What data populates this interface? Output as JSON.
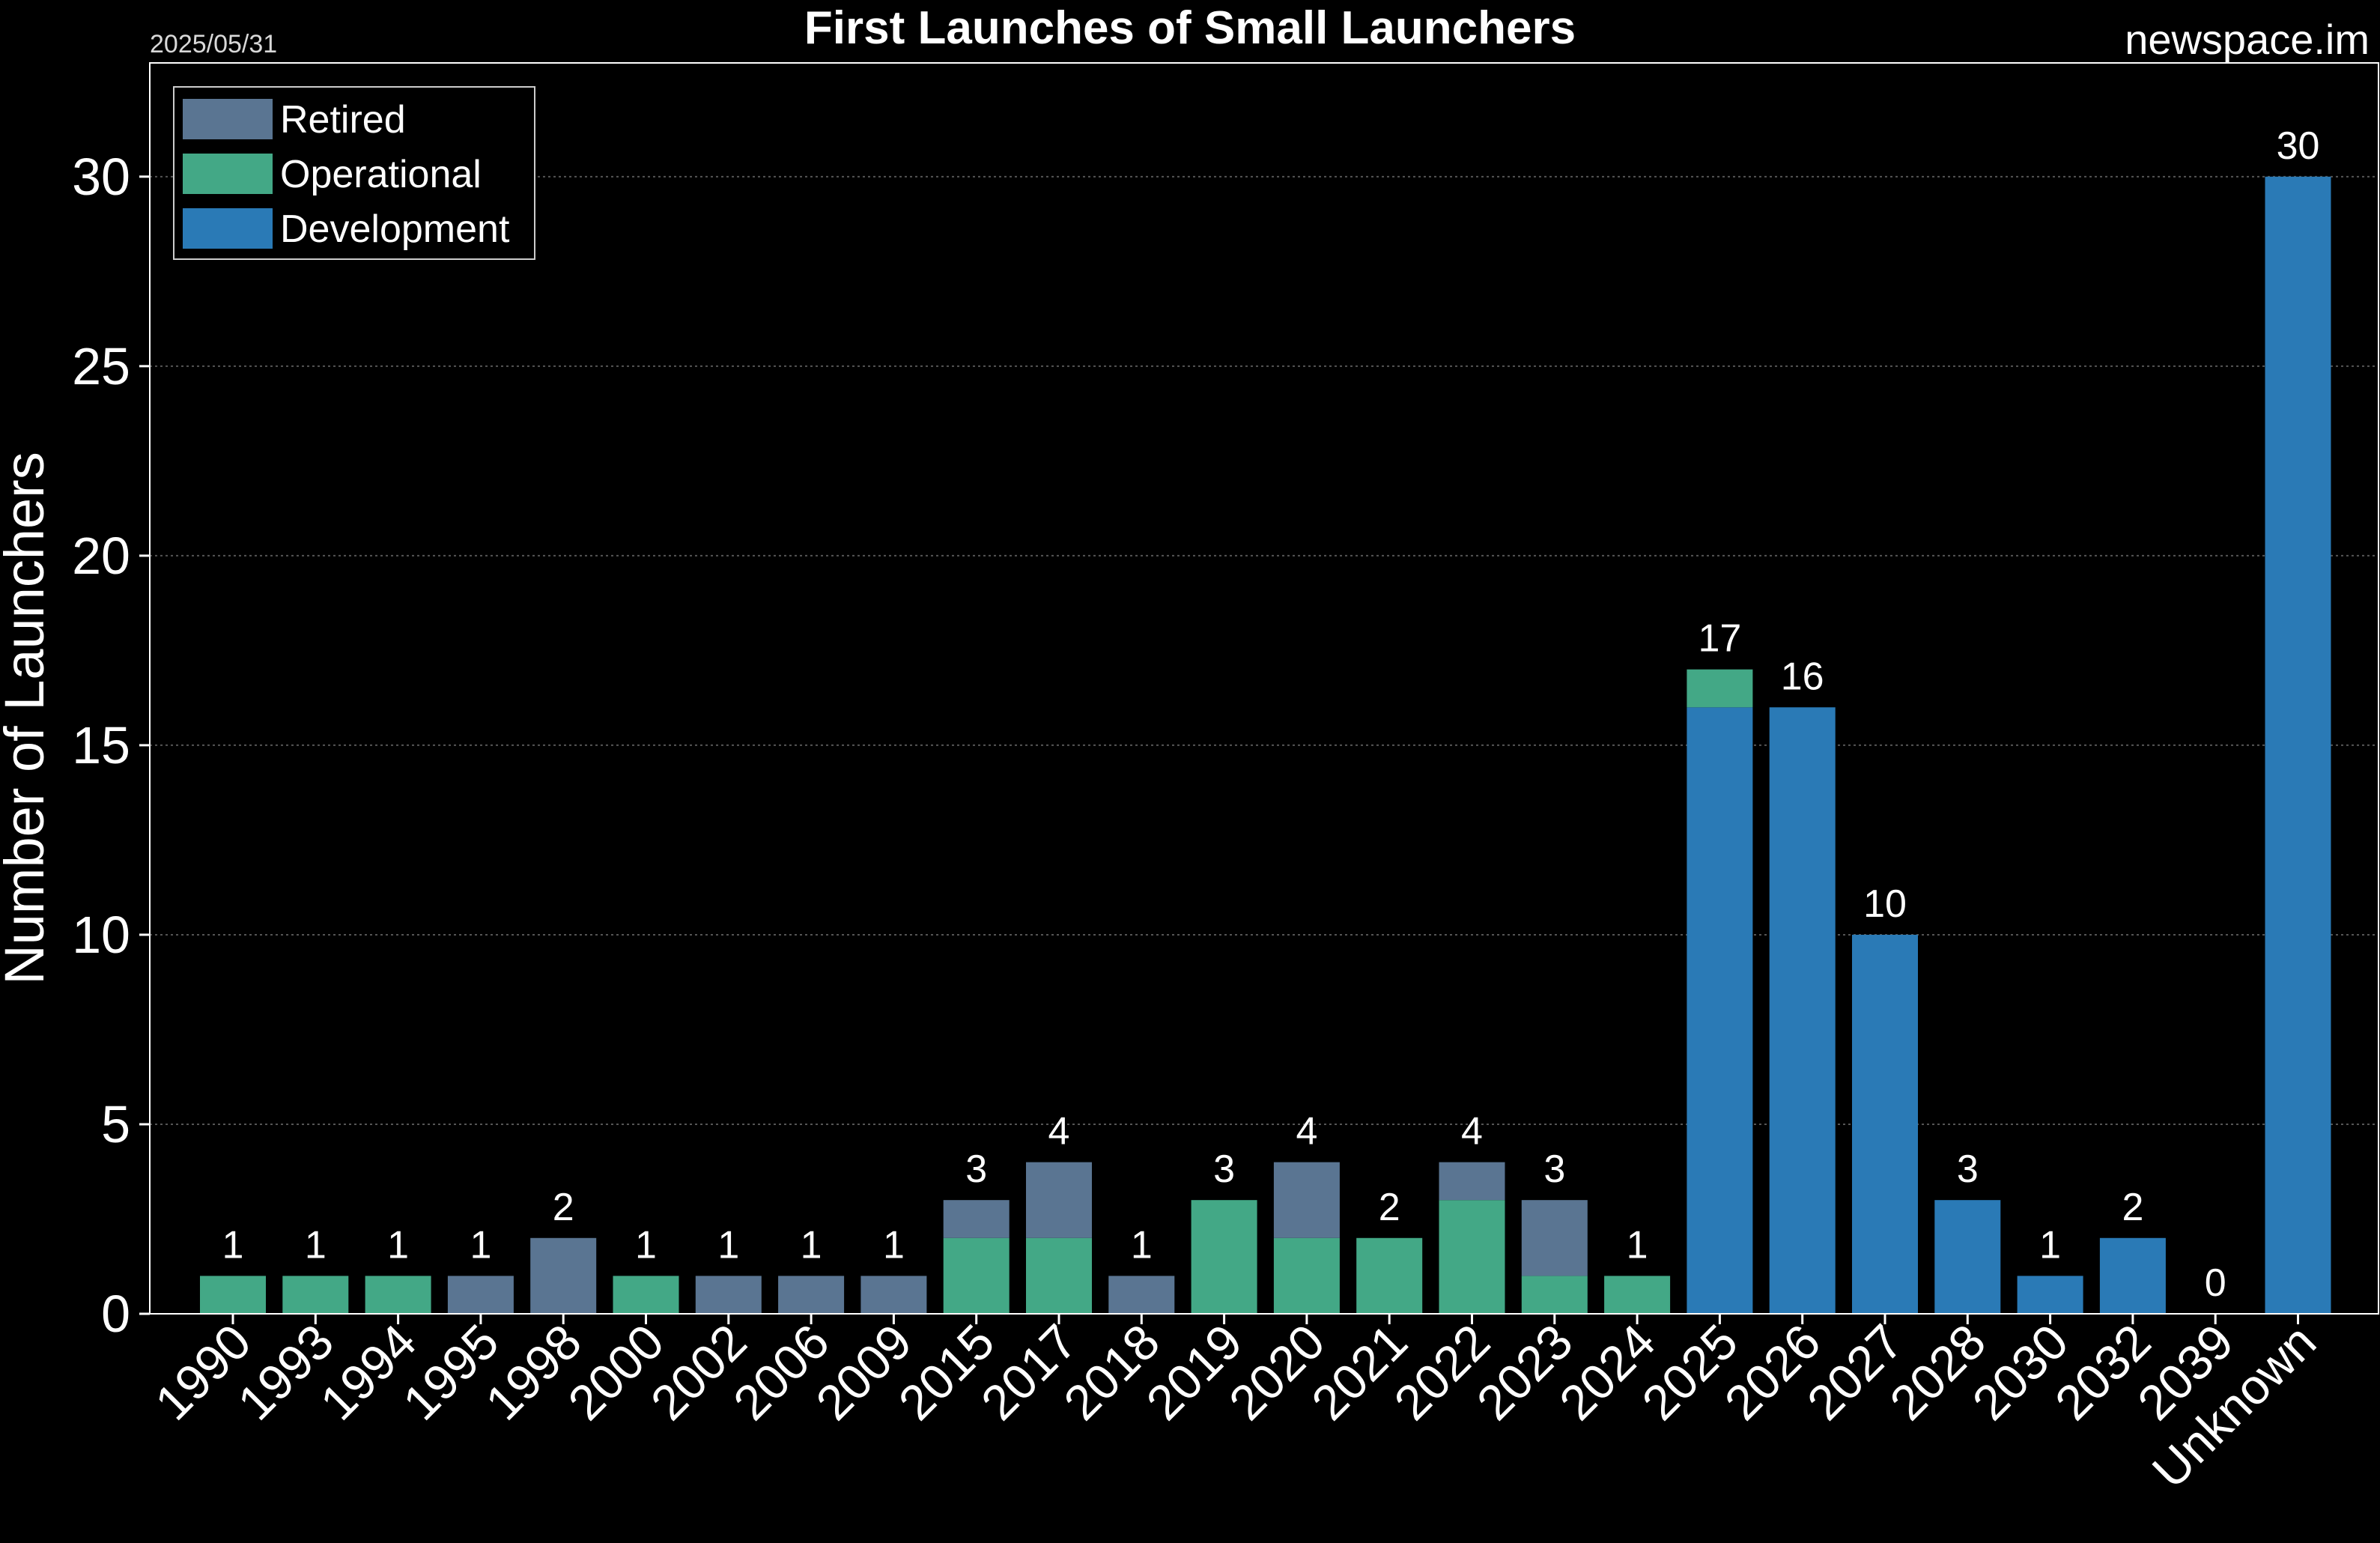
{
  "header": {
    "date": "2025/05/31",
    "brand": "newspace.im"
  },
  "colors": {
    "background": "#000000",
    "retired": "#5a7592",
    "operational": "#43a886",
    "development": "#2a7ab6",
    "grid": "#555555",
    "axis": "#ffffff"
  },
  "chart_data": {
    "type": "bar",
    "stacked": true,
    "title": "First Launches of Small Launchers",
    "xlabel": "",
    "ylabel": "Number of Launchers",
    "ylim": [
      0,
      33
    ],
    "yticks": [
      0,
      5,
      10,
      15,
      20,
      25,
      30
    ],
    "grid": "horizontal dotted",
    "legend_position": "top-left",
    "categories": [
      "1990",
      "1993",
      "1994",
      "1995",
      "1998",
      "2000",
      "2002",
      "2006",
      "2009",
      "2015",
      "2017",
      "2018",
      "2019",
      "2020",
      "2021",
      "2022",
      "2023",
      "2024",
      "2025",
      "2026",
      "2027",
      "2028",
      "2030",
      "2032",
      "2039",
      "Unknown"
    ],
    "series": [
      {
        "name": "Development",
        "color": "#2a7ab6",
        "values": [
          0,
          0,
          0,
          0,
          0,
          0,
          0,
          0,
          0,
          0,
          0,
          0,
          0,
          0,
          0,
          0,
          0,
          0,
          16,
          16,
          10,
          3,
          1,
          2,
          0,
          30
        ]
      },
      {
        "name": "Operational",
        "color": "#43a886",
        "values": [
          1,
          1,
          1,
          0,
          0,
          1,
          0,
          0,
          0,
          2,
          2,
          0,
          3,
          2,
          2,
          3,
          1,
          1,
          1,
          0,
          0,
          0,
          0,
          0,
          0,
          0
        ]
      },
      {
        "name": "Retired",
        "color": "#5a7592",
        "values": [
          0,
          0,
          0,
          1,
          2,
          0,
          1,
          1,
          1,
          1,
          2,
          1,
          0,
          2,
          0,
          1,
          2,
          0,
          0,
          0,
          0,
          0,
          0,
          0,
          0,
          0
        ]
      }
    ],
    "totals": [
      "1",
      "1",
      "1",
      "1",
      "2",
      "1",
      "1",
      "1",
      "1",
      "3",
      "4",
      "1",
      "3",
      "4",
      "2",
      "4",
      "3",
      "1",
      "17",
      "16",
      "10",
      "3",
      "1",
      "2",
      "0",
      "30"
    ],
    "legend": [
      "Retired",
      "Operational",
      "Development"
    ]
  }
}
